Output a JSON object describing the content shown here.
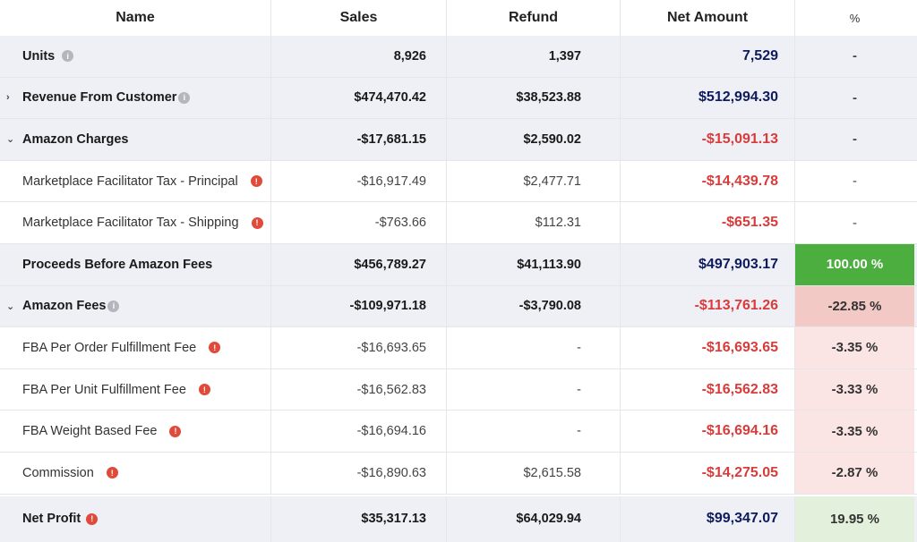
{
  "header": {
    "name": "Name",
    "sales": "Sales",
    "refund": "Refund",
    "net": "Net Amount",
    "pct": "%"
  },
  "rows": [
    {
      "name": "Units",
      "sales": "8,926",
      "refund": "1,397",
      "net": "7,529",
      "pct": "-"
    },
    {
      "name": "Revenue From Customer",
      "sales": "$474,470.42",
      "refund": "$38,523.88",
      "net": "$512,994.30",
      "pct": "-"
    },
    {
      "name": "Amazon Charges",
      "sales": "-$17,681.15",
      "refund": "$2,590.02",
      "net": "-$15,091.13",
      "pct": "-"
    },
    {
      "name": "Marketplace Facilitator Tax - Principal",
      "sales": "-$16,917.49",
      "refund": "$2,477.71",
      "net": "-$14,439.78",
      "pct": "-"
    },
    {
      "name": "Marketplace Facilitator Tax - Shipping",
      "sales": "-$763.66",
      "refund": "$112.31",
      "net": "-$651.35",
      "pct": "-"
    },
    {
      "name": "Proceeds Before Amazon Fees",
      "sales": "$456,789.27",
      "refund": "$41,113.90",
      "net": "$497,903.17",
      "pct": "100.00 %"
    },
    {
      "name": "Amazon Fees",
      "sales": "-$109,971.18",
      "refund": "-$3,790.08",
      "net": "-$113,761.26",
      "pct": "-22.85 %"
    },
    {
      "name": "FBA Per Order Fulfillment Fee",
      "sales": "-$16,693.65",
      "refund": "-",
      "net": "-$16,693.65",
      "pct": "-3.35 %"
    },
    {
      "name": "FBA Per Unit Fulfillment Fee",
      "sales": "-$16,562.83",
      "refund": "-",
      "net": "-$16,562.83",
      "pct": "-3.33 %"
    },
    {
      "name": "FBA Weight Based Fee",
      "sales": "-$16,694.16",
      "refund": "-",
      "net": "-$16,694.16",
      "pct": "-3.35 %"
    },
    {
      "name": "Commission",
      "sales": "-$16,890.63",
      "refund": "$2,615.58",
      "net": "-$14,275.05",
      "pct": "-2.87 %"
    },
    {
      "name": "Net Profit",
      "sales": "$35,317.13",
      "refund": "$64,029.94",
      "net": "$99,347.07",
      "pct": "19.95 %"
    }
  ],
  "icons": {
    "info": "info-icon",
    "warning": "alert-icon",
    "expand": "chevron-right-icon",
    "collapse": "chevron-down-icon"
  },
  "colors": {
    "net_positive": "#0e1a5c",
    "net_negative": "#d93b3b",
    "pct_full": "#4cae3f",
    "pct_negative_group": "#f3c9c6",
    "pct_negative": "#fbe5e4",
    "pct_profit": "#e3f1dc"
  }
}
